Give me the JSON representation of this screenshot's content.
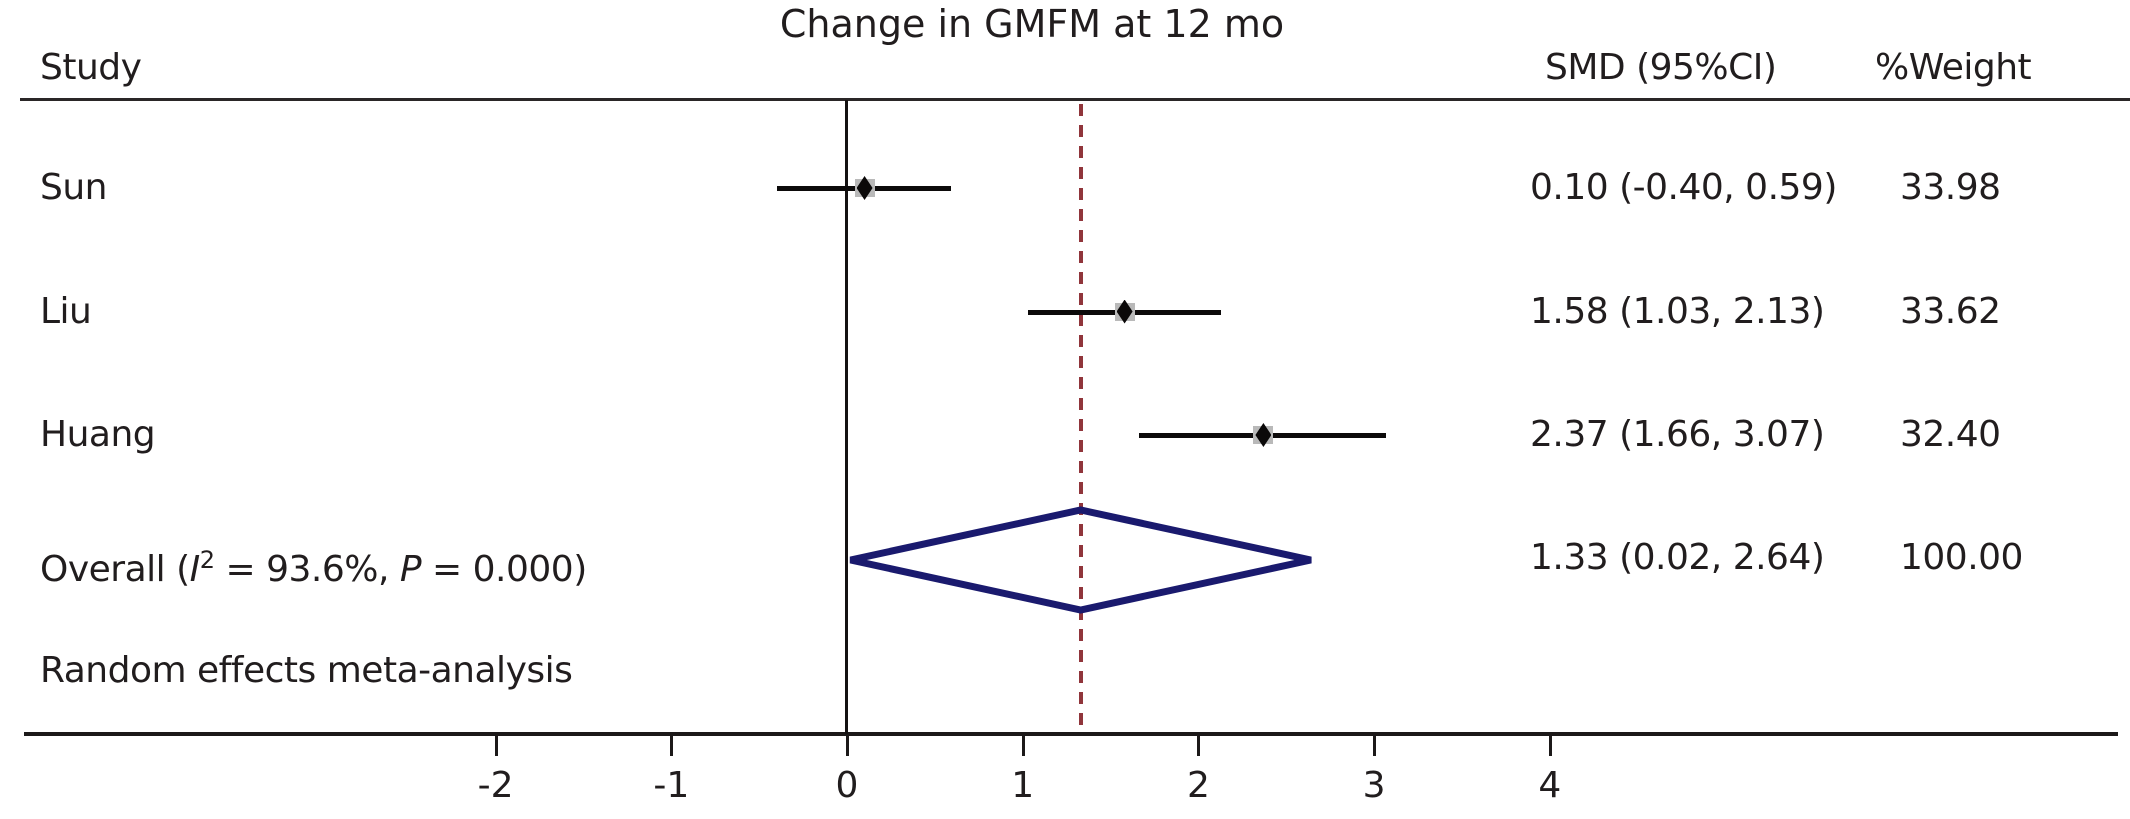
{
  "title": "Change in GMFM at 12 mo",
  "headers": {
    "study": "Study",
    "smd": "SMD (95%CI)",
    "weight": "%Weight"
  },
  "overall_label": {
    "pre": "Overall (",
    "i_sym": "I",
    "i_sup": "2",
    "mid": " = 93.6%, ",
    "p_sym": "P",
    "post": " = 0.000)"
  },
  "note": "Random effects meta-analysis",
  "chart_data": {
    "type": "forest",
    "title": "Change in GMFM at 12 mo",
    "xlabel": "",
    "ylabel": "",
    "x_ticks": [
      -2,
      -1,
      0,
      1,
      2,
      3,
      4
    ],
    "reference_line": 0,
    "overall_line": 1.33,
    "legend": "none",
    "grid": false,
    "studies": [
      {
        "name": "Sun",
        "smd": 0.1,
        "ci_low": -0.4,
        "ci_high": 0.59,
        "weight": 33.98,
        "smd_label": "0.10 (-0.40, 0.59)",
        "weight_label": "33.98"
      },
      {
        "name": "Liu",
        "smd": 1.58,
        "ci_low": 1.03,
        "ci_high": 2.13,
        "weight": 33.62,
        "smd_label": "1.58 (1.03, 2.13)",
        "weight_label": "33.62"
      },
      {
        "name": "Huang",
        "smd": 2.37,
        "ci_low": 1.66,
        "ci_high": 3.07,
        "weight": 32.4,
        "smd_label": "2.37 (1.66, 3.07)",
        "weight_label": "32.40"
      }
    ],
    "overall": {
      "smd": 1.33,
      "ci_low": 0.02,
      "ci_high": 2.64,
      "weight": 100.0,
      "smd_label": "1.33 (0.02, 2.64)",
      "weight_label": "100.00",
      "i_squared": "93.6%",
      "p_value": "0.000",
      "model": "random-effects"
    },
    "colors": {
      "diamond": "#1a1a6e",
      "dashed_line": "#90353b",
      "marker_box": "#b9b9b9",
      "marker_diamond": "#0b0909",
      "text": "#211d1e"
    }
  }
}
